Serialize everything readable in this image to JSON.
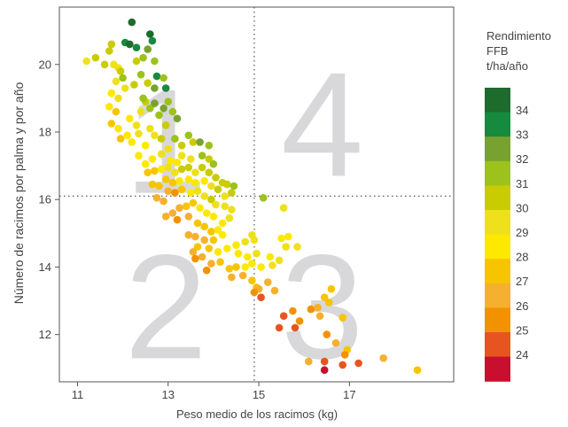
{
  "chart_data": {
    "type": "scatter",
    "xlabel": "Peso medio de los racimos (kg)",
    "ylabel": "Número de racimos por palma y por año",
    "xlim": [
      10.6,
      19.3
    ],
    "ylim": [
      10.6,
      21.7
    ],
    "xticks": [
      11,
      13,
      15,
      17
    ],
    "yticks": [
      12,
      14,
      16,
      18,
      20
    ],
    "grid": false,
    "reference_lines": {
      "x": 14.9,
      "y": 16.1
    },
    "quadrant_labels": [
      "1",
      "2",
      "3",
      "4"
    ],
    "colorbar": {
      "title_lines": [
        "Rendimiento",
        "FFB",
        "t/ha/año"
      ],
      "ticks": [
        "34",
        "33",
        "32",
        "31",
        "30",
        "29",
        "28",
        "27",
        "26",
        "25",
        "24"
      ],
      "bins": [
        {
          "value": 34,
          "color": "#1d6b2d"
        },
        {
          "value": 33,
          "color": "#168a3e"
        },
        {
          "value": 32,
          "color": "#78a22f"
        },
        {
          "value": 31,
          "color": "#9cc21b"
        },
        {
          "value": 30,
          "color": "#c8cc00"
        },
        {
          "value": 29,
          "color": "#eee11c"
        },
        {
          "value": 28,
          "color": "#fde800"
        },
        {
          "value": 27,
          "color": "#f6c500"
        },
        {
          "value": 26,
          "color": "#f6b02f"
        },
        {
          "value": 25,
          "color": "#f39200"
        },
        {
          "value": 24,
          "color": "#e85420"
        },
        {
          "value": 23,
          "color": "#c8102e"
        }
      ]
    },
    "points_columns": [
      "x",
      "y",
      "yield"
    ],
    "points": [
      [
        11.2,
        20.1,
        29
      ],
      [
        11.4,
        20.2,
        30
      ],
      [
        11.6,
        20.0,
        30
      ],
      [
        11.7,
        20.4,
        30
      ],
      [
        11.75,
        20.6,
        30
      ],
      [
        11.8,
        20.0,
        29
      ],
      [
        11.9,
        19.9,
        29
      ],
      [
        11.95,
        19.8,
        30
      ],
      [
        11.85,
        19.5,
        29
      ],
      [
        12.0,
        19.6,
        31
      ],
      [
        12.2,
        21.25,
        34
      ],
      [
        12.05,
        20.65,
        33
      ],
      [
        12.15,
        20.6,
        34
      ],
      [
        12.3,
        20.5,
        33
      ],
      [
        12.6,
        20.9,
        34
      ],
      [
        12.65,
        20.7,
        33
      ],
      [
        12.55,
        20.45,
        32
      ],
      [
        12.45,
        20.2,
        31
      ],
      [
        12.3,
        20.1,
        30
      ],
      [
        12.7,
        20.1,
        31
      ],
      [
        12.4,
        19.7,
        31
      ],
      [
        12.75,
        19.65,
        33
      ],
      [
        12.9,
        19.6,
        31
      ],
      [
        12.95,
        19.3,
        33
      ],
      [
        12.7,
        19.3,
        32
      ],
      [
        12.55,
        19.45,
        30
      ],
      [
        12.25,
        19.4,
        30
      ],
      [
        12.05,
        19.3,
        29
      ],
      [
        11.9,
        19.0,
        29
      ],
      [
        11.75,
        19.15,
        28
      ],
      [
        11.7,
        18.75,
        28
      ],
      [
        11.85,
        18.6,
        27
      ],
      [
        11.75,
        18.25,
        27
      ],
      [
        11.9,
        18.1,
        28
      ],
      [
        11.95,
        17.8,
        27
      ],
      [
        12.1,
        17.9,
        28
      ],
      [
        12.15,
        18.4,
        28
      ],
      [
        12.3,
        18.2,
        29
      ],
      [
        12.4,
        18.6,
        29
      ],
      [
        12.5,
        18.9,
        30
      ],
      [
        12.45,
        19.0,
        31
      ],
      [
        12.6,
        18.7,
        31
      ],
      [
        12.7,
        18.85,
        32
      ],
      [
        12.8,
        18.5,
        31
      ],
      [
        12.9,
        18.7,
        32
      ],
      [
        13.0,
        18.9,
        31
      ],
      [
        13.1,
        18.6,
        31
      ],
      [
        13.2,
        18.4,
        32
      ],
      [
        12.95,
        18.2,
        30
      ],
      [
        12.6,
        18.1,
        29
      ],
      [
        12.35,
        17.95,
        29
      ],
      [
        12.2,
        17.7,
        28
      ],
      [
        12.5,
        17.6,
        28
      ],
      [
        12.7,
        17.9,
        29
      ],
      [
        12.85,
        17.8,
        30
      ],
      [
        13.0,
        17.5,
        29
      ],
      [
        13.15,
        17.8,
        31
      ],
      [
        13.3,
        17.6,
        30
      ],
      [
        13.45,
        17.9,
        31
      ],
      [
        13.55,
        17.7,
        30
      ],
      [
        13.7,
        17.7,
        32
      ],
      [
        13.75,
        17.3,
        31
      ],
      [
        13.9,
        17.6,
        31
      ],
      [
        13.9,
        17.2,
        30
      ],
      [
        14.0,
        17.05,
        31
      ],
      [
        13.5,
        17.2,
        29
      ],
      [
        13.3,
        17.3,
        29
      ],
      [
        13.2,
        17.1,
        28
      ],
      [
        13.05,
        17.15,
        28
      ],
      [
        12.85,
        17.35,
        29
      ],
      [
        12.65,
        17.2,
        28
      ],
      [
        12.5,
        17.05,
        28
      ],
      [
        12.35,
        17.3,
        28
      ],
      [
        12.55,
        16.8,
        27
      ],
      [
        12.7,
        16.85,
        27
      ],
      [
        12.85,
        16.9,
        28
      ],
      [
        13.0,
        16.95,
        29
      ],
      [
        13.15,
        16.8,
        29
      ],
      [
        13.3,
        16.9,
        30
      ],
      [
        13.45,
        16.95,
        30
      ],
      [
        13.6,
        16.8,
        29
      ],
      [
        13.75,
        16.95,
        30
      ],
      [
        13.9,
        16.8,
        30
      ],
      [
        14.05,
        16.65,
        30
      ],
      [
        14.2,
        16.5,
        30
      ],
      [
        14.3,
        16.45,
        30
      ],
      [
        14.45,
        16.4,
        31
      ],
      [
        14.4,
        16.2,
        30
      ],
      [
        14.25,
        16.1,
        29
      ],
      [
        14.1,
        16.3,
        30
      ],
      [
        13.95,
        16.4,
        29
      ],
      [
        13.8,
        16.55,
        28
      ],
      [
        13.6,
        16.5,
        28
      ],
      [
        13.45,
        16.6,
        28
      ],
      [
        13.25,
        16.55,
        28
      ],
      [
        13.1,
        16.5,
        27
      ],
      [
        12.95,
        16.6,
        27
      ],
      [
        12.8,
        16.4,
        27
      ],
      [
        12.65,
        16.45,
        27
      ],
      [
        13.0,
        16.25,
        26
      ],
      [
        13.15,
        16.2,
        25
      ],
      [
        12.9,
        15.95,
        26
      ],
      [
        12.75,
        16.05,
        26
      ],
      [
        13.3,
        16.3,
        27
      ],
      [
        13.5,
        16.2,
        28
      ],
      [
        13.65,
        16.25,
        29
      ],
      [
        13.8,
        16.1,
        29
      ],
      [
        13.95,
        16.0,
        30
      ],
      [
        14.05,
        15.85,
        29
      ],
      [
        14.25,
        15.8,
        29
      ],
      [
        14.4,
        15.7,
        29
      ],
      [
        14.35,
        15.45,
        29
      ],
      [
        14.2,
        15.3,
        28
      ],
      [
        14.0,
        15.5,
        28
      ],
      [
        13.85,
        15.6,
        28
      ],
      [
        13.7,
        15.75,
        28
      ],
      [
        13.55,
        15.9,
        27
      ],
      [
        13.4,
        15.8,
        27
      ],
      [
        13.25,
        15.75,
        26
      ],
      [
        13.1,
        15.6,
        26
      ],
      [
        12.95,
        15.5,
        26
      ],
      [
        13.2,
        15.4,
        25
      ],
      [
        13.45,
        15.5,
        26
      ],
      [
        13.65,
        15.3,
        27
      ],
      [
        13.8,
        15.2,
        27
      ],
      [
        13.95,
        15.05,
        27
      ],
      [
        14.1,
        15.1,
        28
      ],
      [
        14.2,
        14.95,
        28
      ],
      [
        14.0,
        14.8,
        27
      ],
      [
        13.8,
        14.8,
        26
      ],
      [
        13.6,
        14.9,
        26
      ],
      [
        13.45,
        14.95,
        26
      ],
      [
        13.65,
        14.6,
        27
      ],
      [
        13.9,
        14.55,
        27
      ],
      [
        14.1,
        14.45,
        28
      ],
      [
        14.3,
        14.55,
        28
      ],
      [
        14.5,
        14.65,
        28
      ],
      [
        14.7,
        14.75,
        29
      ],
      [
        14.85,
        14.95,
        29
      ],
      [
        14.9,
        14.8,
        29
      ],
      [
        14.55,
        14.4,
        28
      ],
      [
        14.75,
        14.3,
        28
      ],
      [
        14.95,
        14.4,
        29
      ],
      [
        14.85,
        14.1,
        28
      ],
      [
        14.7,
        14.0,
        28
      ],
      [
        14.5,
        14.0,
        27
      ],
      [
        14.35,
        13.95,
        27
      ],
      [
        14.15,
        14.15,
        27
      ],
      [
        13.95,
        14.1,
        26
      ],
      [
        13.75,
        14.3,
        26
      ],
      [
        13.55,
        14.45,
        26
      ],
      [
        13.85,
        13.9,
        25
      ],
      [
        13.6,
        14.25,
        25
      ],
      [
        14.4,
        13.7,
        26
      ],
      [
        14.65,
        13.75,
        26
      ],
      [
        14.85,
        13.6,
        27
      ],
      [
        14.95,
        13.4,
        27
      ],
      [
        15.0,
        13.35,
        26
      ],
      [
        14.9,
        13.25,
        25
      ],
      [
        15.05,
        13.1,
        24
      ],
      [
        15.2,
        13.55,
        26
      ],
      [
        15.35,
        13.3,
        26
      ],
      [
        15.05,
        14.0,
        28
      ],
      [
        15.3,
        14.05,
        29
      ],
      [
        15.45,
        14.2,
        29
      ],
      [
        15.25,
        14.3,
        28
      ],
      [
        15.6,
        14.6,
        29
      ],
      [
        15.85,
        14.6,
        29
      ],
      [
        15.5,
        14.85,
        28
      ],
      [
        15.65,
        14.9,
        28
      ],
      [
        15.55,
        15.75,
        29
      ],
      [
        15.1,
        16.05,
        31
      ],
      [
        16.15,
        12.75,
        25
      ],
      [
        16.3,
        12.8,
        26
      ],
      [
        16.45,
        13.1,
        27
      ],
      [
        16.6,
        13.35,
        27
      ],
      [
        16.55,
        12.95,
        27
      ],
      [
        16.35,
        12.55,
        26
      ],
      [
        16.85,
        12.5,
        27
      ],
      [
        15.9,
        12.4,
        25
      ],
      [
        15.55,
        12.55,
        24
      ],
      [
        15.75,
        12.7,
        25
      ],
      [
        15.45,
        12.2,
        24
      ],
      [
        15.8,
        12.2,
        24
      ],
      [
        16.5,
        12.0,
        25
      ],
      [
        16.7,
        11.75,
        26
      ],
      [
        16.95,
        11.55,
        27
      ],
      [
        16.9,
        11.4,
        25
      ],
      [
        16.45,
        11.2,
        24
      ],
      [
        16.45,
        10.95,
        23
      ],
      [
        16.85,
        11.1,
        24
      ],
      [
        17.2,
        11.15,
        24
      ],
      [
        17.75,
        11.3,
        26
      ],
      [
        18.5,
        10.95,
        27
      ],
      [
        16.1,
        11.2,
        26
      ]
    ]
  }
}
